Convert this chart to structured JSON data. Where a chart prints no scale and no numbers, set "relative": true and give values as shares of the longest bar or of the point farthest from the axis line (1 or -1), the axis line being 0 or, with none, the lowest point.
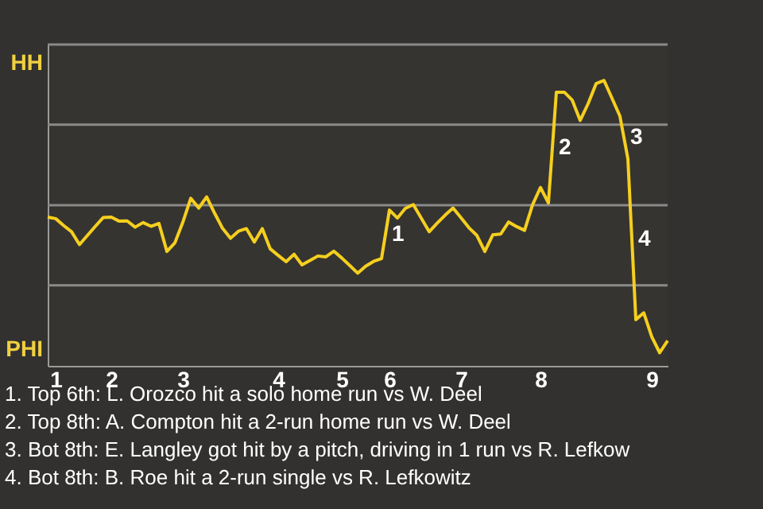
{
  "chart_data": {
    "type": "line",
    "relative": true,
    "marker": "none",
    "line_style": "solid",
    "categories": [
      null,
      "1",
      null,
      null,
      null,
      null,
      null,
      null,
      "2",
      null,
      null,
      null,
      null,
      null,
      null,
      null,
      null,
      "3",
      null,
      null,
      null,
      null,
      null,
      null,
      null,
      null,
      null,
      null,
      null,
      "4",
      null,
      null,
      null,
      null,
      null,
      null,
      null,
      "5",
      null,
      null,
      null,
      null,
      null,
      "6",
      null,
      null,
      null,
      null,
      null,
      null,
      null,
      null,
      "7",
      null,
      null,
      null,
      null,
      null,
      null,
      null,
      null,
      null,
      "8",
      null,
      null,
      null,
      null,
      null,
      null,
      null,
      null,
      null,
      null,
      null,
      null,
      null,
      "9",
      null,
      null
    ],
    "series": [
      {
        "color": "#f5cf1f",
        "values": [
          0.521,
          0.516,
          0.492,
          0.47,
          0.425,
          0.457,
          0.489,
          0.52,
          0.521,
          0.507,
          0.508,
          0.486,
          0.502,
          0.489,
          0.499,
          0.401,
          0.431,
          0.503,
          0.587,
          0.553,
          0.592,
          0.535,
          0.482,
          0.447,
          0.472,
          0.481,
          0.434,
          0.481,
          0.41,
          0.387,
          0.365,
          0.391,
          0.354,
          0.369,
          0.385,
          0.382,
          0.402,
          0.378,
          0.352,
          0.325,
          0.349,
          0.366,
          0.376,
          0.546,
          0.518,
          0.552,
          0.565,
          0.518,
          0.47,
          0.5,
          0.528,
          0.553,
          0.519,
          0.484,
          0.457,
          0.401,
          0.459,
          0.462,
          0.504,
          0.488,
          0.475,
          0.564,
          0.625,
          0.571,
          0.959,
          0.959,
          0.931,
          0.86,
          0.919,
          0.989,
          1,
          0.938,
          0.875,
          0.726,
          0.162,
          0.186,
          0.102,
          0.046,
          0.088
        ]
      }
    ],
    "ref_lines": [
      {
        "axis": "y",
        "value": 0.282,
        "color": "#8a8a8a"
      },
      {
        "axis": "y",
        "value": 0.563,
        "color": "#8a8a8a"
      },
      {
        "axis": "y",
        "value": 0.845,
        "color": "#8a8a8a"
      },
      {
        "axis": "y",
        "value": 1.126,
        "color": "#8a8a8a"
      }
    ],
    "annotations": [
      "HH",
      "PHI",
      "1",
      "2",
      "3",
      "4",
      "1. Top 6th: L. Orozco hit a solo home run vs W. Deel",
      "2. Top 8th: A. Compton hit a 2-run home run vs W. Deel",
      "3. Bot 8th: E. Langley got hit by a pitch, driving in 1 run vs R. Lefkow",
      "4. Bot 8th: B. Roe hit a 2-run single vs R. Lefkowitz"
    ]
  }
}
